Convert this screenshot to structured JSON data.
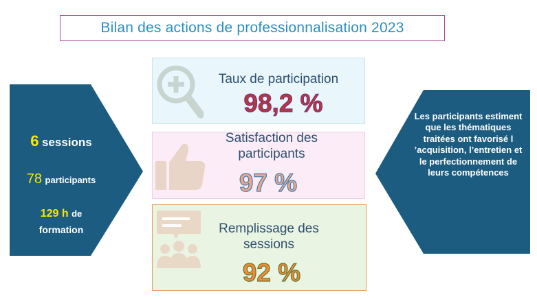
{
  "title": "Bilan des actions de professionnalisation 2023",
  "left_panel": {
    "sessions_number": "6",
    "sessions_label": "sessions",
    "participants_number": "78",
    "participants_label": "participants",
    "hours_number": "129 h",
    "hours_label": "de",
    "formation_label": "formation"
  },
  "cards": [
    {
      "label": "Taux de participation",
      "value": "98,2 %",
      "icon": "magnifier-plus-icon"
    },
    {
      "label": "Satisfaction des participants",
      "value": "97 %",
      "icon": "thumbs-up-icon"
    },
    {
      "label": "Remplissage des sessions",
      "value": "92 %",
      "icon": "group-discussion-icon"
    }
  ],
  "right_panel": {
    "text": "Les participants estiment que les thématiques traitées ont favorisé l ’acquisition, l’entretien et le perfectionnement de leurs compétences"
  },
  "colors": {
    "arrow_fill": "#1c5c80",
    "title_text": "#2a8fc1",
    "title_border": "#b04a9a",
    "highlight_yellow": "#ffe600"
  }
}
